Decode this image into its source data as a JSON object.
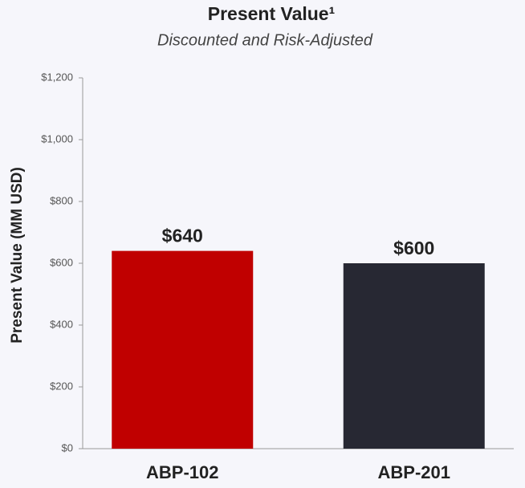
{
  "chart_data": {
    "type": "bar",
    "title": "Present Value¹",
    "subtitle": "Discounted and Risk-Adjusted",
    "ylabel": "Present Value (MM USD)",
    "categories": [
      "ABP-102",
      "ABP-201"
    ],
    "values": [
      640,
      600
    ],
    "value_labels": [
      "$640",
      "$600"
    ],
    "colors": [
      "#c00000",
      "#272833"
    ],
    "ylim": [
      0,
      1200
    ],
    "yticks": [
      {
        "value": 0,
        "label": "$0"
      },
      {
        "value": 200,
        "label": "$200"
      },
      {
        "value": 400,
        "label": "$400"
      },
      {
        "value": 600,
        "label": "$600"
      },
      {
        "value": 800,
        "label": "$800"
      },
      {
        "value": 1000,
        "label": "$1,000"
      },
      {
        "value": 1200,
        "label": "$1,200"
      }
    ]
  }
}
